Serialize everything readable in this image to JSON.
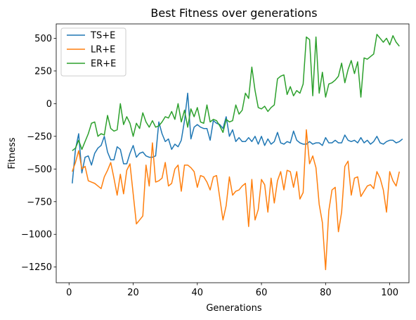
{
  "chart_data": {
    "type": "line",
    "title": "Best Fitness over generations",
    "xlabel": "Generations",
    "ylabel": "Fitness",
    "xlim": [
      -4,
      106
    ],
    "ylim": [
      -1370,
      610
    ],
    "xticks": [
      0,
      20,
      40,
      60,
      80,
      100
    ],
    "yticks": [
      500,
      250,
      0,
      -250,
      -500,
      -750,
      -1000,
      -1250
    ],
    "ytick_labels": [
      "500",
      "250",
      "0",
      "−250",
      "−500",
      "−750",
      "−1000",
      "−1250"
    ],
    "grid": false,
    "legend_position": "upper-left",
    "series": [
      {
        "name": "TS+E",
        "color": "#1f77b4",
        "x_start": 1,
        "values": [
          -610,
          -350,
          -230,
          -530,
          -410,
          -400,
          -470,
          -380,
          -340,
          -320,
          -250,
          -370,
          -430,
          -430,
          -330,
          -350,
          -460,
          -460,
          -380,
          -320,
          -410,
          -380,
          -370,
          -400,
          -410,
          -410,
          -400,
          -140,
          -230,
          -290,
          -270,
          -350,
          -310,
          -330,
          -280,
          -130,
          80,
          -270,
          -180,
          -160,
          -180,
          -190,
          -190,
          -280,
          -130,
          -150,
          -160,
          -190,
          -100,
          -250,
          -200,
          -290,
          -260,
          -290,
          -290,
          -260,
          -290,
          -250,
          -310,
          -250,
          -320,
          -270,
          -310,
          -290,
          -220,
          -300,
          -310,
          -290,
          -300,
          -210,
          -280,
          -300,
          -310,
          -310,
          -290,
          -310,
          -300,
          -300,
          -320,
          -260,
          -300,
          -300,
          -280,
          -300,
          -300,
          -240,
          -280,
          -290,
          -280,
          -300,
          -260,
          -300,
          -280,
          -310,
          -290,
          -250,
          -300,
          -310,
          -290,
          -280,
          -280,
          -300,
          -290,
          -270
        ]
      },
      {
        "name": "LR+E",
        "color": "#ff7f0e",
        "x_start": 1,
        "values": [
          -520,
          -450,
          -360,
          -500,
          -480,
          -590,
          -600,
          -610,
          -630,
          -650,
          -560,
          -510,
          -450,
          -570,
          -700,
          -540,
          -690,
          -510,
          -460,
          -690,
          -920,
          -890,
          -860,
          -470,
          -630,
          -300,
          -600,
          -590,
          -570,
          -450,
          -630,
          -610,
          -500,
          -470,
          -670,
          -470,
          -470,
          -490,
          -520,
          -640,
          -550,
          -560,
          -600,
          -660,
          -560,
          -550,
          -720,
          -890,
          -780,
          -560,
          -700,
          -670,
          -660,
          -630,
          -610,
          -940,
          -580,
          -890,
          -810,
          -580,
          -620,
          -830,
          -570,
          -760,
          -590,
          -520,
          -660,
          -510,
          -520,
          -640,
          -520,
          -730,
          -680,
          -200,
          -460,
          -400,
          -490,
          -770,
          -910,
          -1270,
          -820,
          -660,
          -640,
          -980,
          -830,
          -480,
          -440,
          -700,
          -570,
          -560,
          -710,
          -670,
          -630,
          -620,
          -650,
          -520,
          -570,
          -660,
          -830,
          -520,
          -590,
          -630,
          -520
        ]
      },
      {
        "name": "ER+E",
        "color": "#2ca02c",
        "x_start": 1,
        "values": [
          -360,
          -340,
          -280,
          -350,
          -290,
          -230,
          -150,
          -140,
          -250,
          -230,
          -240,
          -90,
          -190,
          -210,
          -200,
          0,
          -160,
          -100,
          -150,
          -250,
          -150,
          -190,
          -70,
          -140,
          -180,
          -130,
          -180,
          -170,
          -140,
          -100,
          -110,
          -60,
          -120,
          0,
          -140,
          -50,
          -180,
          -40,
          -100,
          -30,
          -140,
          -150,
          -10,
          -140,
          -120,
          -130,
          -170,
          -220,
          -120,
          -140,
          -130,
          -10,
          -80,
          -50,
          80,
          40,
          280,
          100,
          -30,
          -40,
          -20,
          -60,
          -30,
          -10,
          190,
          210,
          220,
          70,
          130,
          60,
          100,
          80,
          150,
          510,
          490,
          60,
          510,
          80,
          240,
          50,
          150,
          160,
          180,
          210,
          310,
          160,
          260,
          330,
          230,
          320,
          50,
          350,
          340,
          360,
          380,
          530,
          500,
          470,
          500,
          450,
          520,
          470,
          440
        ]
      }
    ]
  }
}
